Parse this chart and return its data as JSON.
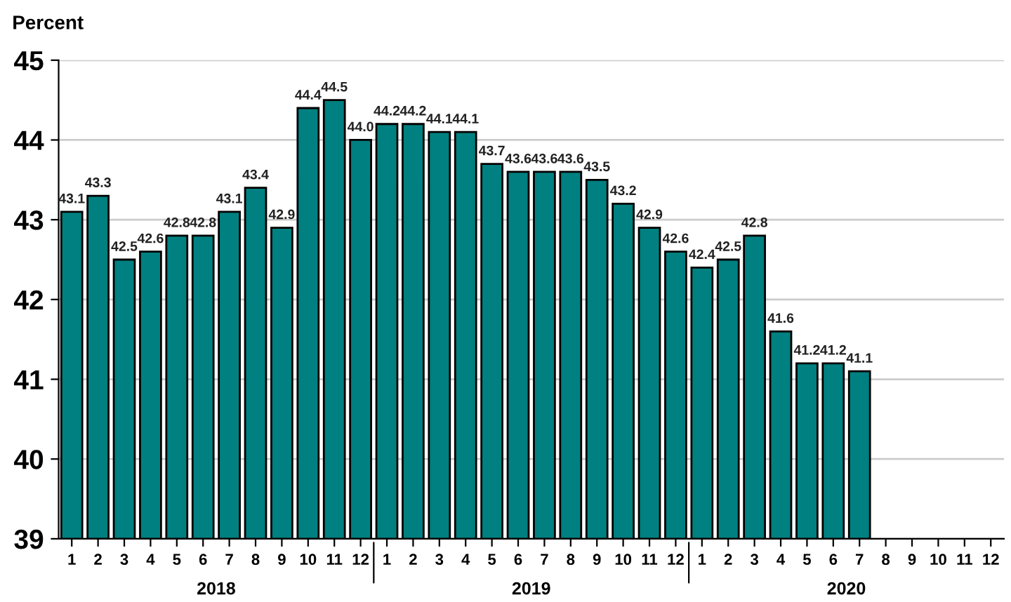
{
  "chart_data": {
    "type": "bar",
    "ylabel": "Percent",
    "categories": [
      "1",
      "2",
      "3",
      "4",
      "5",
      "6",
      "7",
      "8",
      "9",
      "10",
      "11",
      "12",
      "1",
      "2",
      "3",
      "4",
      "5",
      "6",
      "7",
      "8",
      "9",
      "10",
      "11",
      "12",
      "1",
      "2",
      "3",
      "4",
      "5",
      "6",
      "7",
      "8",
      "9",
      "10",
      "11",
      "12"
    ],
    "values": [
      43.1,
      43.3,
      42.5,
      42.6,
      42.8,
      42.8,
      43.1,
      43.4,
      42.9,
      44.4,
      44.5,
      44.0,
      44.2,
      44.2,
      44.1,
      44.1,
      43.7,
      43.6,
      43.6,
      43.6,
      43.5,
      43.2,
      42.9,
      42.6,
      42.4,
      42.5,
      42.8,
      41.6,
      41.2,
      41.2,
      41.1,
      null,
      null,
      null,
      null,
      null
    ],
    "value_labels": [
      "43.1",
      "43.3",
      "42.5",
      "42.6",
      "42.8",
      "42.8",
      "43.1",
      "43.4",
      "42.9",
      "44.4",
      "44.5",
      "44.0",
      "44.2",
      "44.2",
      "44.1",
      "44.1",
      "43.7",
      "43.6",
      "43.6",
      "43.6",
      "43.5",
      "43.2",
      "42.9",
      "42.6",
      "42.4",
      "42.5",
      "42.8",
      "41.6",
      "41.2",
      "41.2",
      "41.1",
      null,
      null,
      null,
      null,
      null
    ],
    "color": "#008080",
    "ylim": [
      39,
      45
    ],
    "yticks": [
      39,
      40,
      41,
      42,
      43,
      44,
      45
    ],
    "grid": "y",
    "annotations": [
      "2018",
      "2019",
      "2020"
    ]
  }
}
